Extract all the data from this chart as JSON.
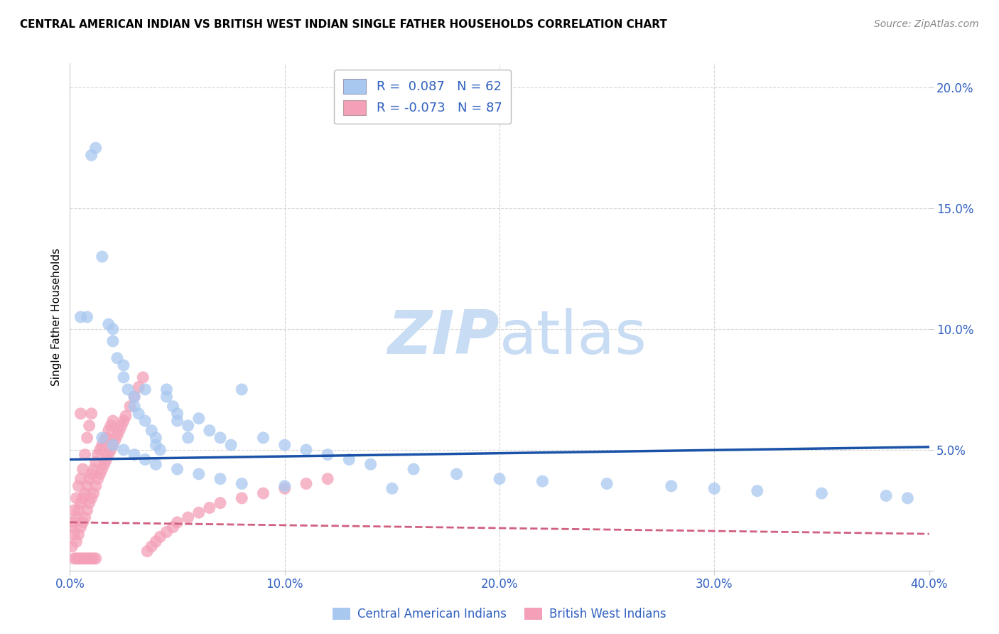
{
  "title": "CENTRAL AMERICAN INDIAN VS BRITISH WEST INDIAN SINGLE FATHER HOUSEHOLDS CORRELATION CHART",
  "source": "Source: ZipAtlas.com",
  "ylabel": "Single Father Households",
  "xlim": [
    0.0,
    0.4
  ],
  "ylim": [
    0.0,
    0.21
  ],
  "xticks": [
    0.0,
    0.1,
    0.2,
    0.3,
    0.4
  ],
  "yticks": [
    0.0,
    0.05,
    0.1,
    0.15,
    0.2
  ],
  "xtick_labels": [
    "0.0%",
    "10.0%",
    "20.0%",
    "30.0%",
    "40.0%"
  ],
  "ytick_labels": [
    "",
    "5.0%",
    "10.0%",
    "15.0%",
    "20.0%"
  ],
  "legend1_label": "R =  0.087   N = 62",
  "legend2_label": "R = -0.073   N = 87",
  "legend_bottom_label1": "Central American Indians",
  "legend_bottom_label2": "British West Indians",
  "blue_fill_color": "#A8C8F0",
  "pink_fill_color": "#F4A0B8",
  "blue_line_color": "#1A52A8",
  "pink_line_color": "#D06080",
  "tick_label_color": "#3060C0",
  "grid_color": "#CCCCCC",
  "watermark_color": "#C8DCF4",
  "blue_intercept": 0.046,
  "blue_slope": 0.013,
  "pink_intercept": 0.02,
  "pink_slope": -0.012,
  "blue_scatter_x": [
    0.005,
    0.008,
    0.01,
    0.012,
    0.015,
    0.018,
    0.02,
    0.02,
    0.022,
    0.025,
    0.025,
    0.027,
    0.03,
    0.03,
    0.032,
    0.035,
    0.035,
    0.038,
    0.04,
    0.04,
    0.042,
    0.045,
    0.045,
    0.048,
    0.05,
    0.05,
    0.055,
    0.055,
    0.06,
    0.065,
    0.07,
    0.075,
    0.08,
    0.09,
    0.1,
    0.11,
    0.12,
    0.13,
    0.14,
    0.16,
    0.18,
    0.2,
    0.22,
    0.25,
    0.28,
    0.3,
    0.32,
    0.35,
    0.38,
    0.39,
    0.015,
    0.02,
    0.025,
    0.03,
    0.035,
    0.04,
    0.05,
    0.06,
    0.07,
    0.08,
    0.1,
    0.15
  ],
  "blue_scatter_y": [
    0.105,
    0.105,
    0.172,
    0.175,
    0.13,
    0.102,
    0.1,
    0.095,
    0.088,
    0.085,
    0.08,
    0.075,
    0.072,
    0.068,
    0.065,
    0.062,
    0.075,
    0.058,
    0.055,
    0.052,
    0.05,
    0.075,
    0.072,
    0.068,
    0.065,
    0.062,
    0.06,
    0.055,
    0.063,
    0.058,
    0.055,
    0.052,
    0.075,
    0.055,
    0.052,
    0.05,
    0.048,
    0.046,
    0.044,
    0.042,
    0.04,
    0.038,
    0.037,
    0.036,
    0.035,
    0.034,
    0.033,
    0.032,
    0.031,
    0.03,
    0.055,
    0.052,
    0.05,
    0.048,
    0.046,
    0.044,
    0.042,
    0.04,
    0.038,
    0.036,
    0.035,
    0.034
  ],
  "pink_scatter_x": [
    0.001,
    0.001,
    0.002,
    0.002,
    0.002,
    0.003,
    0.003,
    0.003,
    0.004,
    0.004,
    0.004,
    0.005,
    0.005,
    0.005,
    0.005,
    0.006,
    0.006,
    0.006,
    0.007,
    0.007,
    0.007,
    0.008,
    0.008,
    0.008,
    0.009,
    0.009,
    0.009,
    0.01,
    0.01,
    0.01,
    0.011,
    0.011,
    0.012,
    0.012,
    0.013,
    0.013,
    0.014,
    0.014,
    0.015,
    0.015,
    0.016,
    0.016,
    0.017,
    0.017,
    0.018,
    0.018,
    0.019,
    0.019,
    0.02,
    0.02,
    0.021,
    0.022,
    0.023,
    0.024,
    0.025,
    0.026,
    0.028,
    0.03,
    0.032,
    0.034,
    0.036,
    0.038,
    0.04,
    0.042,
    0.045,
    0.048,
    0.05,
    0.055,
    0.06,
    0.065,
    0.07,
    0.08,
    0.09,
    0.1,
    0.11,
    0.12,
    0.002,
    0.003,
    0.004,
    0.005,
    0.006,
    0.007,
    0.008,
    0.009,
    0.01,
    0.011,
    0.012
  ],
  "pink_scatter_y": [
    0.01,
    0.018,
    0.015,
    0.02,
    0.025,
    0.012,
    0.022,
    0.03,
    0.015,
    0.025,
    0.035,
    0.018,
    0.028,
    0.038,
    0.065,
    0.02,
    0.03,
    0.042,
    0.022,
    0.032,
    0.048,
    0.025,
    0.035,
    0.055,
    0.028,
    0.038,
    0.06,
    0.03,
    0.04,
    0.065,
    0.032,
    0.042,
    0.035,
    0.045,
    0.038,
    0.048,
    0.04,
    0.05,
    0.042,
    0.052,
    0.044,
    0.054,
    0.046,
    0.055,
    0.048,
    0.058,
    0.05,
    0.06,
    0.052,
    0.062,
    0.054,
    0.056,
    0.058,
    0.06,
    0.062,
    0.064,
    0.068,
    0.072,
    0.076,
    0.08,
    0.008,
    0.01,
    0.012,
    0.014,
    0.016,
    0.018,
    0.02,
    0.022,
    0.024,
    0.026,
    0.028,
    0.03,
    0.032,
    0.034,
    0.036,
    0.038,
    0.005,
    0.005,
    0.005,
    0.005,
    0.005,
    0.005,
    0.005,
    0.005,
    0.005,
    0.005,
    0.005
  ]
}
